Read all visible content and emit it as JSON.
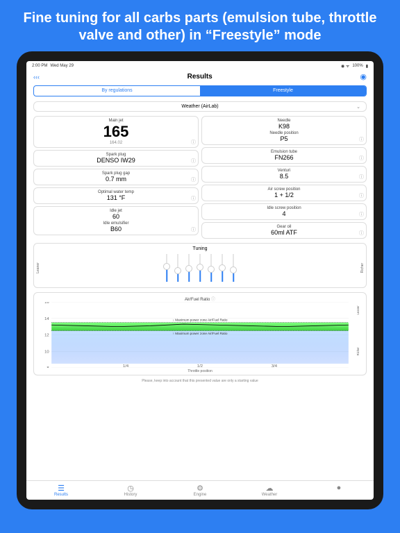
{
  "headline": "Fine tuning for all carbs parts (emulsion tube, throttle valve and other) in “Freestyle” mode",
  "statusbar": {
    "time": "2:00 PM",
    "date": "Wed May 29",
    "battery": "100%"
  },
  "topbar": {
    "back": "‹‹‹",
    "title": "Results"
  },
  "segmented": {
    "left": "By regulations",
    "right": "Freestyle"
  },
  "weather": {
    "label": "Weather (AirLab)"
  },
  "leftCards": [
    {
      "lbl": "Main jet",
      "big": "165",
      "sub": "164.02"
    },
    {
      "lbl": "Spark plug",
      "val": "DENSO IW29"
    },
    {
      "lbl": "Spark plug gap",
      "val": "0.7 mm"
    },
    {
      "lbl": "Optimal water temp",
      "val": "131 °F"
    },
    {
      "lbl": "Idle jet",
      "val": "60",
      "lbl2": "Idle emulsifier",
      "val2": "B60"
    }
  ],
  "rightCards": [
    {
      "lbl": "Needle",
      "val": "K98",
      "lbl2": "Needle position",
      "val2": "P5"
    },
    {
      "lbl": "Emulsion tube",
      "val": "FN266"
    },
    {
      "lbl": "Venturi",
      "val": "8.5"
    },
    {
      "lbl": "Air screw position",
      "val": "1 + 1/2"
    },
    {
      "lbl": "Idle screw position",
      "val": "4"
    },
    {
      "lbl": "Gear oil",
      "val": "60ml ATF"
    }
  ],
  "tuning": {
    "title": "Tuning",
    "leaner": "Leaner",
    "richer": "Richer",
    "sliders": [
      55,
      40,
      48,
      52,
      45,
      50,
      42
    ],
    "knob_color": "#ffffff",
    "track_color": "#cccccc",
    "fill_color": "#2d7ff2"
  },
  "chart": {
    "title": "Air/Fuel Ratio",
    "xlabel": "Throttle position",
    "xticks": [
      "1/4",
      "1/2",
      "3/4"
    ],
    "yticks": [
      "16",
      "14",
      "12",
      "10",
      "8"
    ],
    "leaner": "Leaner",
    "richer": "Richer",
    "maxLabel": "Maximum power zone Air/Fuel Ratio",
    "line_color": "#000000",
    "band1_from": "#7fff7f",
    "band1_to": "#3fcf3f",
    "band2_from": "#a9d4ff",
    "band2_to": "#6699ff",
    "bg": "#ffffff",
    "grid": "#e8e8e8",
    "series": [
      13.2,
      13.1,
      13.0,
      13.1,
      13.3,
      13.2,
      13.1,
      13.0,
      13.1,
      13.2
    ]
  },
  "footer": "Please, keep into account that this presented value are only a starting value",
  "tabs": [
    {
      "icon": "☰",
      "label": "Results",
      "active": true
    },
    {
      "icon": "◷",
      "label": "History"
    },
    {
      "icon": "⚙",
      "label": "Engine"
    },
    {
      "icon": "☁",
      "label": "Weather"
    },
    {
      "icon": "●",
      "label": ""
    }
  ],
  "colors": {
    "accent": "#2d7ff2",
    "bg": "#2d7ff2",
    "card_border": "#dddddd"
  }
}
